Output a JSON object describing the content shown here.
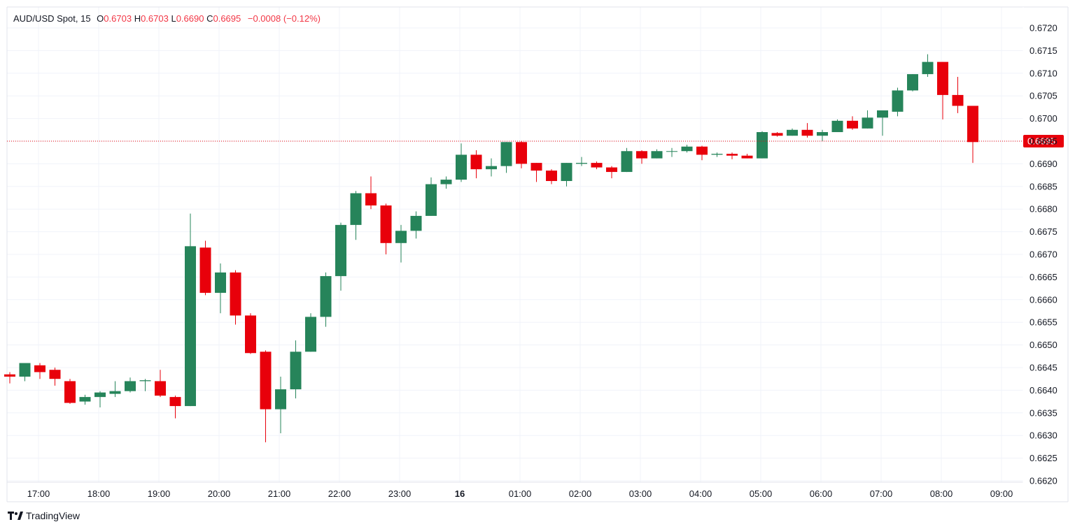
{
  "legend": {
    "symbol": "AUD/USD Spot, 15",
    "o_label": "O",
    "o_value": "0.6703",
    "h_label": "H",
    "h_value": "0.6703",
    "l_label": "L",
    "l_value": "0.6690",
    "c_label": "C",
    "c_value": "0.6695",
    "change": "−0.0008 (−0.12%)"
  },
  "brand": {
    "logo_icon": "tradingview-logo-icon",
    "name": "TradingView"
  },
  "colors": {
    "up": "#26845a",
    "down": "#e8000b",
    "grid": "#f0f3fa",
    "last_price": "#e8000b"
  },
  "chart_data": {
    "type": "candlestick",
    "interval_minutes": 15,
    "ylim": [
      0.662,
      0.672
    ],
    "y_ticks": [
      "0.6720",
      "0.6715",
      "0.6710",
      "0.6705",
      "0.6700",
      "0.6695",
      "0.6690",
      "0.6685",
      "0.6680",
      "0.6675",
      "0.6670",
      "0.6665",
      "0.6660",
      "0.6655",
      "0.6650",
      "0.6645",
      "0.6640",
      "0.6635",
      "0.6630",
      "0.6625",
      "0.6620"
    ],
    "x_ticks": [
      {
        "label": "17:00",
        "bold": false
      },
      {
        "label": "18:00",
        "bold": false
      },
      {
        "label": "19:00",
        "bold": false
      },
      {
        "label": "20:00",
        "bold": false
      },
      {
        "label": "21:00",
        "bold": false
      },
      {
        "label": "22:00",
        "bold": false
      },
      {
        "label": "23:00",
        "bold": false
      },
      {
        "label": "16",
        "bold": true
      },
      {
        "label": "01:00",
        "bold": false
      },
      {
        "label": "02:00",
        "bold": false
      },
      {
        "label": "03:00",
        "bold": false
      },
      {
        "label": "04:00",
        "bold": false
      },
      {
        "label": "05:00",
        "bold": false
      },
      {
        "label": "06:00",
        "bold": false
      },
      {
        "label": "07:00",
        "bold": false
      },
      {
        "label": "08:00",
        "bold": false
      },
      {
        "label": "09:00",
        "bold": false
      }
    ],
    "last_price": "0.6695",
    "candles": [
      {
        "time": "16:30",
        "o": 0.66435,
        "h": 0.6644,
        "l": 0.66415,
        "c": 0.6643
      },
      {
        "time": "16:45",
        "o": 0.6643,
        "h": 0.6645,
        "l": 0.6642,
        "c": 0.6646
      },
      {
        "time": "17:00",
        "o": 0.66455,
        "h": 0.6646,
        "l": 0.66425,
        "c": 0.6644
      },
      {
        "time": "17:15",
        "o": 0.66445,
        "h": 0.6645,
        "l": 0.6641,
        "c": 0.66425
      },
      {
        "time": "17:30",
        "o": 0.6642,
        "h": 0.66425,
        "l": 0.6637,
        "c": 0.66372
      },
      {
        "time": "17:45",
        "o": 0.66375,
        "h": 0.6639,
        "l": 0.66368,
        "c": 0.66385
      },
      {
        "time": "18:00",
        "o": 0.66385,
        "h": 0.66398,
        "l": 0.66362,
        "c": 0.66395
      },
      {
        "time": "18:15",
        "o": 0.66392,
        "h": 0.6642,
        "l": 0.66385,
        "c": 0.66398
      },
      {
        "time": "18:30",
        "o": 0.66398,
        "h": 0.66428,
        "l": 0.66395,
        "c": 0.6642
      },
      {
        "time": "18:45",
        "o": 0.6642,
        "h": 0.66425,
        "l": 0.66398,
        "c": 0.66422
      },
      {
        "time": "19:00",
        "o": 0.6642,
        "h": 0.66445,
        "l": 0.66385,
        "c": 0.66388
      },
      {
        "time": "19:15",
        "o": 0.66385,
        "h": 0.66388,
        "l": 0.66338,
        "c": 0.66365
      },
      {
        "time": "19:30",
        "o": 0.66365,
        "h": 0.6679,
        "l": 0.66365,
        "c": 0.66718
      },
      {
        "time": "19:45",
        "o": 0.66715,
        "h": 0.6673,
        "l": 0.6661,
        "c": 0.66615
      },
      {
        "time": "20:00",
        "o": 0.66615,
        "h": 0.6668,
        "l": 0.6657,
        "c": 0.6666
      },
      {
        "time": "20:15",
        "o": 0.6666,
        "h": 0.66665,
        "l": 0.66545,
        "c": 0.66565
      },
      {
        "time": "20:30",
        "o": 0.66565,
        "h": 0.6657,
        "l": 0.6648,
        "c": 0.66482
      },
      {
        "time": "20:45",
        "o": 0.66485,
        "h": 0.66488,
        "l": 0.66285,
        "c": 0.66358
      },
      {
        "time": "21:00",
        "o": 0.66358,
        "h": 0.6643,
        "l": 0.66305,
        "c": 0.66402
      },
      {
        "time": "21:15",
        "o": 0.66402,
        "h": 0.6651,
        "l": 0.66382,
        "c": 0.66485
      },
      {
        "time": "21:30",
        "o": 0.66485,
        "h": 0.6657,
        "l": 0.66485,
        "c": 0.66562
      },
      {
        "time": "21:45",
        "o": 0.66562,
        "h": 0.6666,
        "l": 0.6654,
        "c": 0.66652
      },
      {
        "time": "22:00",
        "o": 0.66652,
        "h": 0.6677,
        "l": 0.6662,
        "c": 0.66765
      },
      {
        "time": "22:15",
        "o": 0.66765,
        "h": 0.6684,
        "l": 0.66732,
        "c": 0.66835
      },
      {
        "time": "22:30",
        "o": 0.66835,
        "h": 0.66872,
        "l": 0.668,
        "c": 0.66808
      },
      {
        "time": "22:45",
        "o": 0.66808,
        "h": 0.66812,
        "l": 0.667,
        "c": 0.66725
      },
      {
        "time": "23:00",
        "o": 0.66725,
        "h": 0.66765,
        "l": 0.66682,
        "c": 0.66752
      },
      {
        "time": "23:15",
        "o": 0.66752,
        "h": 0.66795,
        "l": 0.66735,
        "c": 0.66785
      },
      {
        "time": "23:30",
        "o": 0.66785,
        "h": 0.6687,
        "l": 0.66785,
        "c": 0.66855
      },
      {
        "time": "23:45",
        "o": 0.66855,
        "h": 0.66872,
        "l": 0.66845,
        "c": 0.66865
      },
      {
        "time": "00:00",
        "o": 0.66865,
        "h": 0.66945,
        "l": 0.6686,
        "c": 0.6692
      },
      {
        "time": "00:15",
        "o": 0.6692,
        "h": 0.6693,
        "l": 0.66868,
        "c": 0.66888
      },
      {
        "time": "00:30",
        "o": 0.66888,
        "h": 0.66912,
        "l": 0.66872,
        "c": 0.66895
      },
      {
        "time": "00:45",
        "o": 0.66895,
        "h": 0.66948,
        "l": 0.6688,
        "c": 0.66948
      },
      {
        "time": "01:00",
        "o": 0.66948,
        "h": 0.6695,
        "l": 0.6689,
        "c": 0.669
      },
      {
        "time": "01:15",
        "o": 0.66902,
        "h": 0.66902,
        "l": 0.6686,
        "c": 0.66885
      },
      {
        "time": "01:30",
        "o": 0.66885,
        "h": 0.66888,
        "l": 0.66855,
        "c": 0.66862
      },
      {
        "time": "01:45",
        "o": 0.66862,
        "h": 0.66902,
        "l": 0.6685,
        "c": 0.66902
      },
      {
        "time": "02:00",
        "o": 0.669,
        "h": 0.66915,
        "l": 0.66895,
        "c": 0.66902
      },
      {
        "time": "02:15",
        "o": 0.66902,
        "h": 0.66905,
        "l": 0.66888,
        "c": 0.66892
      },
      {
        "time": "02:30",
        "o": 0.66892,
        "h": 0.66895,
        "l": 0.66868,
        "c": 0.66882
      },
      {
        "time": "02:45",
        "o": 0.66882,
        "h": 0.66935,
        "l": 0.66882,
        "c": 0.66928
      },
      {
        "time": "03:00",
        "o": 0.66928,
        "h": 0.6693,
        "l": 0.669,
        "c": 0.66912
      },
      {
        "time": "03:15",
        "o": 0.66912,
        "h": 0.66932,
        "l": 0.66912,
        "c": 0.66928
      },
      {
        "time": "03:30",
        "o": 0.66928,
        "h": 0.66935,
        "l": 0.66915,
        "c": 0.66928
      },
      {
        "time": "03:45",
        "o": 0.66928,
        "h": 0.66942,
        "l": 0.66925,
        "c": 0.66938
      },
      {
        "time": "04:00",
        "o": 0.66938,
        "h": 0.6694,
        "l": 0.66908,
        "c": 0.6692
      },
      {
        "time": "04:15",
        "o": 0.6692,
        "h": 0.66925,
        "l": 0.66915,
        "c": 0.66922
      },
      {
        "time": "04:30",
        "o": 0.66922,
        "h": 0.66925,
        "l": 0.6691,
        "c": 0.66918
      },
      {
        "time": "04:45",
        "o": 0.66918,
        "h": 0.66922,
        "l": 0.66912,
        "c": 0.66912
      },
      {
        "time": "05:00",
        "o": 0.66912,
        "h": 0.66972,
        "l": 0.66912,
        "c": 0.6697
      },
      {
        "time": "05:15",
        "o": 0.66968,
        "h": 0.6697,
        "l": 0.6696,
        "c": 0.66962
      },
      {
        "time": "05:30",
        "o": 0.66962,
        "h": 0.66978,
        "l": 0.66962,
        "c": 0.66975
      },
      {
        "time": "05:45",
        "o": 0.66975,
        "h": 0.6699,
        "l": 0.66958,
        "c": 0.66962
      },
      {
        "time": "06:00",
        "o": 0.66962,
        "h": 0.66975,
        "l": 0.6695,
        "c": 0.6697
      },
      {
        "time": "06:15",
        "o": 0.6697,
        "h": 0.66998,
        "l": 0.6697,
        "c": 0.66995
      },
      {
        "time": "06:30",
        "o": 0.66995,
        "h": 0.67005,
        "l": 0.66975,
        "c": 0.66978
      },
      {
        "time": "06:45",
        "o": 0.66978,
        "h": 0.67018,
        "l": 0.66978,
        "c": 0.67002
      },
      {
        "time": "07:00",
        "o": 0.67002,
        "h": 0.67012,
        "l": 0.66962,
        "c": 0.67018
      },
      {
        "time": "07:15",
        "o": 0.67015,
        "h": 0.67068,
        "l": 0.67005,
        "c": 0.67062
      },
      {
        "time": "07:30",
        "o": 0.67062,
        "h": 0.67098,
        "l": 0.6706,
        "c": 0.67098
      },
      {
        "time": "07:45",
        "o": 0.67098,
        "h": 0.67142,
        "l": 0.67092,
        "c": 0.67125
      },
      {
        "time": "08:00",
        "o": 0.67125,
        "h": 0.67125,
        "l": 0.66998,
        "c": 0.67052
      },
      {
        "time": "08:15",
        "o": 0.67052,
        "h": 0.67092,
        "l": 0.67012,
        "c": 0.67028
      },
      {
        "time": "08:30",
        "o": 0.67028,
        "h": 0.67028,
        "l": 0.66902,
        "c": 0.66948
      }
    ]
  }
}
